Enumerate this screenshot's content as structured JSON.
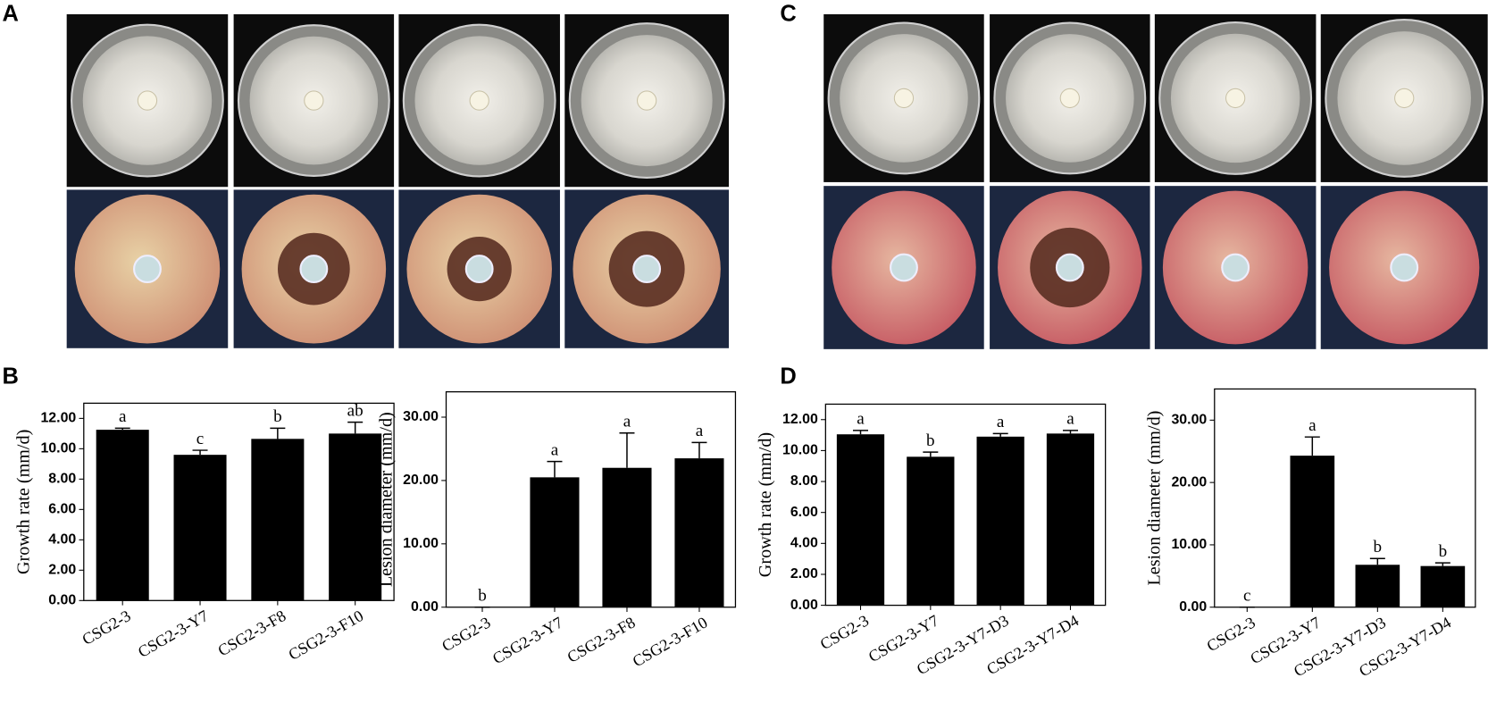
{
  "panel_labels": [
    "A",
    "B",
    "C",
    "D"
  ],
  "chart_data": [
    {
      "type": "bar",
      "ylabel": "Growth rate (mm/d)",
      "categories": [
        "CSG2-3",
        "CSG2-3-Y7",
        "CSG2-3-F8",
        "CSG2-3-F10"
      ],
      "values": [
        11.25,
        9.6,
        10.65,
        11.0
      ],
      "errors": [
        0.1,
        0.3,
        0.7,
        0.75
      ],
      "letters": [
        "a",
        "c",
        "b",
        "ab"
      ],
      "color": "#000000",
      "ylim": [
        0,
        13
      ],
      "yticks": [
        {
          "value": 0,
          "label": "0.00"
        },
        {
          "value": 2,
          "label": "2.00"
        },
        {
          "value": 4,
          "label": "4.00"
        },
        {
          "value": 6,
          "label": "6.00"
        },
        {
          "value": 8,
          "label": "8.00"
        },
        {
          "value": 10,
          "label": "10.00"
        },
        {
          "value": 12,
          "label": "12.00"
        }
      ]
    },
    {
      "type": "bar",
      "ylabel": "Lesion  diameter (mm/d)",
      "categories": [
        "CSG2-3",
        "CSG2-3-Y7",
        "CSG2-3-F8",
        "CSG2-3-F10"
      ],
      "values": [
        0,
        20.5,
        22,
        23.5
      ],
      "errors": [
        0,
        2.5,
        5.5,
        2.5
      ],
      "letters": [
        "b",
        "a",
        "a",
        "a"
      ],
      "color": "#000000",
      "ylim": [
        0,
        34
      ],
      "yticks": [
        {
          "value": 0,
          "label": "0.00"
        },
        {
          "value": 10,
          "label": "10.00"
        },
        {
          "value": 20,
          "label": "20.00"
        },
        {
          "value": 30,
          "label": "30.00"
        }
      ]
    },
    {
      "type": "bar",
      "ylabel": "Growth rate (mm/d)",
      "categories": [
        "CSG2-3",
        "CSG2-3-Y7",
        "CSG2-3-Y7-D3",
        "CSG2-3-Y7-D4"
      ],
      "values": [
        11.05,
        9.6,
        10.9,
        11.1
      ],
      "errors": [
        0.25,
        0.3,
        0.2,
        0.2
      ],
      "letters": [
        "a",
        "b",
        "a",
        "a"
      ],
      "color": "#000000",
      "ylim": [
        0,
        13
      ],
      "yticks": [
        {
          "value": 0,
          "label": "0.00"
        },
        {
          "value": 2,
          "label": "2.00"
        },
        {
          "value": 4,
          "label": "4.00"
        },
        {
          "value": 6,
          "label": "6.00"
        },
        {
          "value": 8,
          "label": "8.00"
        },
        {
          "value": 10,
          "label": "10.00"
        },
        {
          "value": 12,
          "label": "12.00"
        }
      ]
    },
    {
      "type": "bar",
      "ylabel": "Lesion  diameter (mm/d)",
      "categories": [
        "CSG2-3",
        "CSG2-3-Y7",
        "CSG2-3-Y7-D3",
        "CSG2-3-Y7-D4"
      ],
      "values": [
        0,
        24.3,
        6.8,
        6.6
      ],
      "errors": [
        0,
        3,
        1,
        0.5
      ],
      "letters": [
        "c",
        "a",
        "b",
        "b"
      ],
      "color": "#000000",
      "ylim": [
        0,
        35
      ],
      "yticks": [
        {
          "value": 0,
          "label": "0.00"
        },
        {
          "value": 10,
          "label": "10.00"
        },
        {
          "value": 20,
          "label": "20.00"
        },
        {
          "value": 30,
          "label": "30.00"
        }
      ]
    }
  ]
}
